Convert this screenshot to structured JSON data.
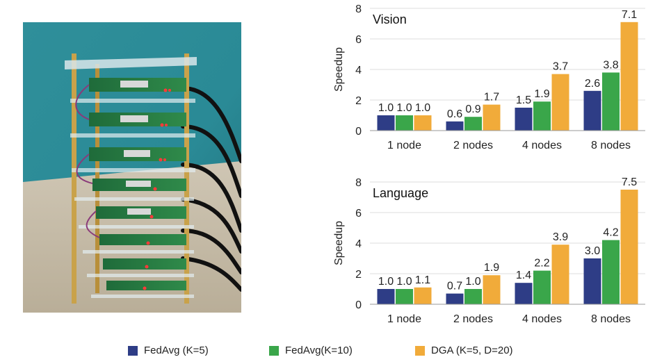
{
  "colors": {
    "fedavg_k5": "#2e3d86",
    "fedavg_k10": "#3aa64a",
    "dga": "#f1ab3a"
  },
  "photo": {
    "icon": "raspberry-pi-cluster-photo"
  },
  "chart_data": [
    {
      "type": "bar",
      "title": "Vision",
      "ylabel": "Speedup",
      "xlabel": "",
      "ylim": [
        0,
        8
      ],
      "yticks": [
        0,
        2,
        4,
        6,
        8
      ],
      "grid": true,
      "categories": [
        "1 node",
        "2 nodes",
        "4 nodes",
        "8 nodes"
      ],
      "series": [
        {
          "name": "FedAvg (K=5)",
          "values": [
            1.0,
            0.6,
            1.5,
            2.6
          ],
          "labels": [
            "1.0",
            "0.6",
            "1.5",
            "2.6"
          ]
        },
        {
          "name": "FedAvg(K=10)",
          "values": [
            1.0,
            0.9,
            1.9,
            3.8
          ],
          "labels": [
            "1.0",
            "0.9",
            "1.9",
            "3.8"
          ]
        },
        {
          "name": "DGA (K=5, D=20)",
          "values": [
            1.0,
            1.7,
            3.7,
            7.1
          ],
          "labels": [
            "1.0",
            "1.7",
            "3.7",
            "7.1"
          ]
        }
      ]
    },
    {
      "type": "bar",
      "title": "Language",
      "ylabel": "Speedup",
      "xlabel": "",
      "ylim": [
        0,
        8
      ],
      "yticks": [
        0,
        2,
        4,
        6,
        8
      ],
      "grid": true,
      "categories": [
        "1 node",
        "2 nodes",
        "4 nodes",
        "8 nodes"
      ],
      "series": [
        {
          "name": "FedAvg (K=5)",
          "values": [
            1.0,
            0.7,
            1.4,
            3.0
          ],
          "labels": [
            "1.0",
            "0.7",
            "1.4",
            "3.0"
          ]
        },
        {
          "name": "FedAvg(K=10)",
          "values": [
            1.0,
            1.0,
            2.2,
            4.2
          ],
          "labels": [
            "1.0",
            "1.0",
            "2.2",
            "4.2"
          ]
        },
        {
          "name": "DGA (K=5, D=20)",
          "values": [
            1.1,
            1.9,
            3.9,
            7.5
          ],
          "labels": [
            "1.1",
            "1.9",
            "3.9",
            "7.5"
          ]
        }
      ]
    }
  ],
  "legend": [
    {
      "label": "FedAvg (K=5)",
      "color_key": "fedavg_k5"
    },
    {
      "label": "FedAvg(K=10)",
      "color_key": "fedavg_k10"
    },
    {
      "label": "DGA (K=5, D=20)",
      "color_key": "dga"
    }
  ]
}
